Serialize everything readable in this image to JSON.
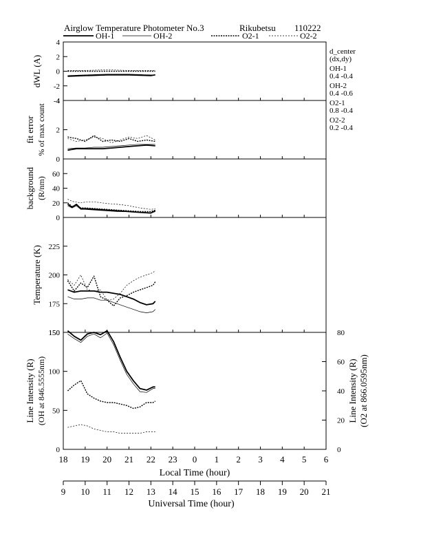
{
  "header": {
    "title": "Airglow Temperature Photometer No.3",
    "site": "Rikubetsu",
    "date": "110222"
  },
  "legend": [
    {
      "name": "OH-1",
      "style": "thick-solid"
    },
    {
      "name": "OH-2",
      "style": "thin-solid"
    },
    {
      "name": "O2-1",
      "style": "thick-dotted"
    },
    {
      "name": "O2-2",
      "style": "thin-dotted"
    }
  ],
  "side_notes": {
    "heading": "d_center",
    "subheading": "(dx,dy)",
    "entries": [
      {
        "label": "OH-1",
        "value": "0.4  -0.4"
      },
      {
        "label": "OH-2",
        "value": "0.4  -0.6"
      },
      {
        "label": "O2-1",
        "value": "0.8  -0.4"
      },
      {
        "label": "O2-2",
        "value": "0.2  -0.4"
      }
    ]
  },
  "chart_data": {
    "type": "line",
    "x_range_local_hour": [
      18,
      30
    ],
    "local_time_axis": {
      "label": "Local Time (hour)",
      "ticks": [
        "18",
        "19",
        "20",
        "21",
        "22",
        "23",
        "0",
        "1",
        "2",
        "3",
        "4",
        "5",
        "6"
      ]
    },
    "universal_time_axis": {
      "label": "Universal Time (hour)",
      "ticks": [
        "9",
        "10",
        "11",
        "12",
        "13",
        "14",
        "15",
        "16",
        "17",
        "18",
        "19",
        "20",
        "21"
      ]
    },
    "panels": [
      {
        "id": "dwl",
        "ylabel": "dWL (A)",
        "ylim": [
          -4,
          4
        ],
        "yticks": [
          "-4",
          "-2",
          "0",
          "2",
          "4"
        ],
        "x": [
          18.2,
          19.0,
          20.0,
          21.0,
          22.0,
          22.2
        ],
        "series": [
          {
            "name": "OH-1",
            "values": [
              -0.7,
              -0.6,
              -0.5,
              -0.5,
              -0.6,
              -0.5
            ]
          },
          {
            "name": "OH-2",
            "values": [
              -0.6,
              -0.5,
              -0.4,
              -0.4,
              -0.5,
              -0.5
            ]
          },
          {
            "name": "O2-1",
            "values": [
              0.0,
              0.0,
              0.0,
              0.0,
              0.0,
              0.0
            ]
          },
          {
            "name": "O2-2",
            "values": [
              0.1,
              0.1,
              0.2,
              0.1,
              0.1,
              0.1
            ]
          }
        ]
      },
      {
        "id": "fit",
        "ylabel": "fit error",
        "ylabel2": "% of max count",
        "ylim": [
          0,
          4
        ],
        "yticks": [
          "0",
          "2",
          "4"
        ],
        "x": [
          18.2,
          18.6,
          19.0,
          19.4,
          19.8,
          20.2,
          20.6,
          21.0,
          21.4,
          21.8,
          22.2
        ],
        "series": [
          {
            "name": "OH-1",
            "values": [
              0.6,
              0.7,
              0.7,
              0.7,
              0.7,
              0.75,
              0.8,
              0.85,
              0.9,
              0.95,
              0.9
            ]
          },
          {
            "name": "OH-2",
            "values": [
              0.7,
              0.75,
              0.75,
              0.8,
              0.8,
              0.85,
              0.9,
              0.95,
              1.0,
              1.0,
              1.0
            ]
          },
          {
            "name": "O2-1",
            "values": [
              1.5,
              1.4,
              1.2,
              1.6,
              1.2,
              1.3,
              1.2,
              1.4,
              1.2,
              1.3,
              1.2
            ]
          },
          {
            "name": "O2-2",
            "values": [
              1.4,
              1.2,
              1.3,
              1.5,
              1.4,
              1.1,
              1.3,
              1.5,
              1.4,
              1.6,
              1.3
            ]
          }
        ]
      },
      {
        "id": "bg",
        "ylabel": "background",
        "ylabel2": "(R/nm)",
        "ylim": [
          0,
          80
        ],
        "yticks": [
          "0",
          "20",
          "40",
          "60"
        ],
        "x": [
          18.2,
          18.4,
          18.6,
          18.8,
          19.0,
          19.5,
          20.0,
          20.5,
          21.0,
          21.5,
          22.0,
          22.2
        ],
        "series": [
          {
            "name": "OH-1",
            "values": [
              18,
              14,
              18,
              12,
              12,
              11,
              10,
              9,
              8,
              7,
              6,
              9
            ]
          },
          {
            "name": "OH-2",
            "values": [
              16,
              13,
              16,
              11,
              11,
              10,
              9,
              8,
              8,
              7,
              6,
              8
            ]
          },
          {
            "name": "O2-1",
            "values": [
              20,
              15,
              17,
              13,
              13,
              12,
              11,
              10,
              9,
              8,
              8,
              10
            ]
          },
          {
            "name": "O2-2",
            "values": [
              25,
              22,
              21,
              20,
              21,
              21,
              19,
              18,
              16,
              13,
              11,
              12
            ]
          }
        ]
      },
      {
        "id": "temp",
        "ylabel": "Temperature (K)",
        "ylim": [
          150,
          250
        ],
        "yticks": [
          "150",
          "175",
          "200",
          "225"
        ],
        "x": [
          18.2,
          18.5,
          18.8,
          19.1,
          19.4,
          19.7,
          20.0,
          20.3,
          20.6,
          20.9,
          21.2,
          21.5,
          21.8,
          22.1,
          22.2
        ],
        "series": [
          {
            "name": "OH-1",
            "values": [
              187,
              185,
              186,
              186,
              186,
              185,
              185,
              184,
              183,
              181,
              179,
              176,
              174,
              175,
              177
            ]
          },
          {
            "name": "OH-2",
            "values": [
              181,
              179,
              179,
              180,
              180,
              178,
              178,
              176,
              174,
              172,
              170,
              168,
              167,
              168,
              170
            ]
          },
          {
            "name": "O2-1",
            "values": [
              195,
              186,
              193,
              189,
              199,
              181,
              178,
              173,
              180,
              182,
              185,
              187,
              189,
              191,
              194
            ]
          },
          {
            "name": "O2-2",
            "values": [
              196,
              191,
              200,
              187,
              186,
              187,
              178,
              179,
              184,
              191,
              195,
              198,
              200,
              202,
              204
            ]
          }
        ]
      },
      {
        "id": "int",
        "ylabel": "Line Intensity (R)",
        "ylabel2": "(OH at 846.5555nm)",
        "ylabel_right": "Line Intensity (R)",
        "ylabel_right2": "(O2 at 866.0595nm)",
        "ylim": [
          0,
          150
        ],
        "yticks": [
          "0",
          "50",
          "100",
          "150"
        ],
        "ylim_right": [
          0,
          80
        ],
        "yticks_right": [
          "0",
          "20",
          "40",
          "60",
          "80"
        ],
        "x": [
          18.2,
          18.5,
          18.8,
          19.1,
          19.4,
          19.7,
          20.0,
          20.3,
          20.6,
          20.9,
          21.2,
          21.5,
          21.8,
          22.1,
          22.2
        ],
        "series": [
          {
            "name": "OH-1",
            "axis": "left",
            "values": [
              152,
              145,
              140,
              148,
              150,
              147,
              152,
              138,
              118,
              100,
              88,
              78,
              76,
              80,
              80
            ]
          },
          {
            "name": "OH-2",
            "axis": "left",
            "values": [
              148,
              142,
              137,
              145,
              148,
              143,
              149,
              134,
              114,
              96,
              84,
              74,
              73,
              78,
              78
            ]
          },
          {
            "name": "O2-1",
            "axis": "right",
            "values": [
              40,
              44,
              47,
              38,
              35,
              33,
              32,
              32,
              31,
              30,
              28,
              29,
              32,
              32,
              33
            ]
          },
          {
            "name": "O2-2",
            "axis": "right",
            "values": [
              15,
              16,
              17,
              16,
              14,
              13,
              12,
              12,
              11,
              11,
              11,
              11,
              12,
              12,
              12
            ]
          }
        ]
      }
    ]
  }
}
